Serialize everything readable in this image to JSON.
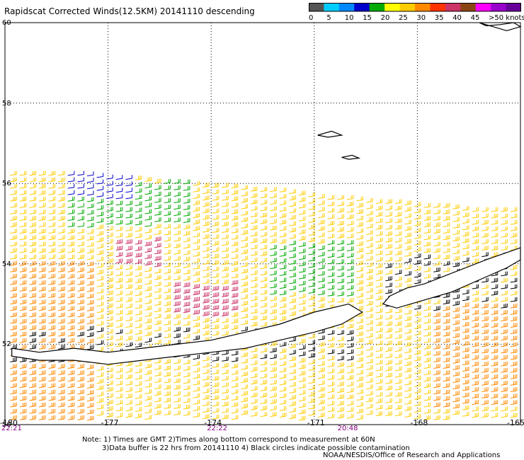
{
  "header": {
    "title": "Rapidscat Corrected Winds(12.5KM) 20141110 descending"
  },
  "legend": {
    "colors": [
      "#555555",
      "#00ccff",
      "#0088ff",
      "#0000cc",
      "#00aa00",
      "#ffff00",
      "#ffcc00",
      "#ff8800",
      "#ff3300",
      "#cc3366",
      "#8b4513",
      "#ff00ff",
      "#9900cc",
      "#660099"
    ],
    "labels": [
      "0",
      "5",
      "10",
      "15",
      "20",
      "25",
      "30",
      "35",
      "40",
      "45",
      ">50 knots"
    ]
  },
  "chart_data": {
    "type": "wind-barb-map",
    "title": "Rapidscat Corrected Winds(12.5KM) 20141110 descending",
    "xlim": [
      -180,
      -165
    ],
    "ylim": [
      50,
      60
    ],
    "lon_ticks": [
      "-180",
      "-177",
      "-174",
      "-171",
      "-168",
      "-165"
    ],
    "lat_ticks": [
      "60",
      "58",
      "56",
      "54",
      "52",
      "50"
    ],
    "time_labels": [
      {
        "lon": -180,
        "text": "22:21"
      },
      {
        "lon": -174,
        "text": "22:22"
      },
      {
        "lon": -170.2,
        "text": "20:48"
      }
    ],
    "grid": true,
    "swaths": [
      {
        "lon": [
          -178.3,
          -177.7,
          -177.0,
          -176.3,
          -175.6,
          -174.9,
          -174.2,
          -173.5,
          -172.8,
          -172.1,
          -171.4,
          -170.7,
          -170.0,
          -169.3,
          -168.6,
          -167.9,
          -167.2,
          -166.5,
          -165.8,
          -165.1
        ],
        "north_lat": [
          56.2,
          56.2,
          56.1,
          56.1,
          56.0,
          56.0,
          55.9,
          55.9,
          55.8,
          55.8,
          55.7,
          55.6,
          55.6,
          55.5,
          55.5,
          55.4,
          55.4,
          55.3,
          55.3,
          55.3
        ]
      }
    ],
    "wind_regions": [
      {
        "lon": [
          -178.3,
          -176.4
        ],
        "lat": [
          55.6,
          56.2
        ],
        "speed_kt": 12,
        "color": "#0000cc"
      },
      {
        "lon": [
          -178.3,
          -175.9
        ],
        "lat": [
          54.9,
          55.6
        ],
        "speed_kt": 17,
        "color": "#00aa00"
      },
      {
        "lon": [
          -176.7,
          -174.8
        ],
        "lat": [
          54.9,
          56.0
        ],
        "speed_kt": 18,
        "color": "#00aa00"
      },
      {
        "lon": [
          -172.4,
          -169.8
        ],
        "lat": [
          53.2,
          54.5
        ],
        "speed_kt": 18,
        "color": "#00aa00"
      },
      {
        "lon": [
          -177.0,
          -175.5
        ],
        "lat": [
          53.9,
          54.6
        ],
        "speed_kt": 34,
        "color": "#cc3366"
      },
      {
        "lon": [
          -175.2,
          -173.2
        ],
        "lat": [
          52.7,
          53.5
        ],
        "speed_kt": 38,
        "color": "#cc3366"
      },
      {
        "lon": [
          -180.0,
          -177.6
        ],
        "lat": [
          50.0,
          54.0
        ],
        "speed_kt": 30,
        "color": "#ff8800"
      },
      {
        "lon": [
          -167.6,
          -165.0
        ],
        "lat": [
          50.4,
          53.0
        ],
        "speed_kt": 28,
        "color": "#ff8800"
      },
      {
        "lon": [
          -180.0,
          -165.0
        ],
        "lat": [
          50.0,
          56.2
        ],
        "speed_kt": 24,
        "color": "#ffcc00"
      }
    ],
    "land": [
      {
        "name": "Alaska Peninsula",
        "lon": [
          -165.0,
          -166.0,
          -166.6,
          -167.2,
          -167.8,
          -168.3,
          -168.8,
          -169.0,
          -168.6,
          -167.8,
          -167.0,
          -166.2,
          -165.4,
          -165.0
        ],
        "lat": [
          54.4,
          54.1,
          53.9,
          53.7,
          53.5,
          53.4,
          53.2,
          53.0,
          52.9,
          53.1,
          53.3,
          53.6,
          53.9,
          54.1
        ]
      },
      {
        "name": "Aleutian chain",
        "lon": [
          -179.8,
          -179.0,
          -178.0,
          -177.0,
          -176.0,
          -175.0,
          -174.0,
          -173.0,
          -172.0,
          -171.0,
          -170.0,
          -169.6,
          -170.2,
          -171.0,
          -172.0,
          -173.0,
          -174.0,
          -175.0,
          -176.0,
          -177.0,
          -178.0,
          -179.0,
          -179.8
        ],
        "lat": [
          51.9,
          51.8,
          51.9,
          51.8,
          51.9,
          52.0,
          52.1,
          52.3,
          52.5,
          52.8,
          53.0,
          52.8,
          52.5,
          52.3,
          52.1,
          51.9,
          51.8,
          51.7,
          51.6,
          51.5,
          51.6,
          51.6,
          51.7
        ]
      },
      {
        "name": "Alaska coast",
        "lon": [
          -166.2,
          -165.8,
          -165.4,
          -165.0,
          -165.2,
          -165.6,
          -166.0
        ],
        "lat": [
          60.0,
          59.9,
          59.8,
          59.9,
          60.0,
          59.95,
          59.92
        ]
      },
      {
        "name": "St. Matthew Island",
        "lon": [
          -170.9,
          -170.5,
          -170.2,
          -170.6
        ],
        "lat": [
          57.2,
          57.3,
          57.2,
          57.15
        ]
      },
      {
        "name": "Pribilof Island",
        "lon": [
          -170.2,
          -169.9,
          -169.7,
          -170.0
        ],
        "lat": [
          56.65,
          56.7,
          56.63,
          56.6
        ]
      }
    ],
    "notes": [
      "Note: 1) Times are GMT 2)Times along bottom correspond to measurement at 60N",
      "3)Data buffer is 22 hrs from 20141110 4) Black circles indicate possible contamination"
    ],
    "credit": "NOAA/NESDIS/Office of Research and Applications"
  }
}
